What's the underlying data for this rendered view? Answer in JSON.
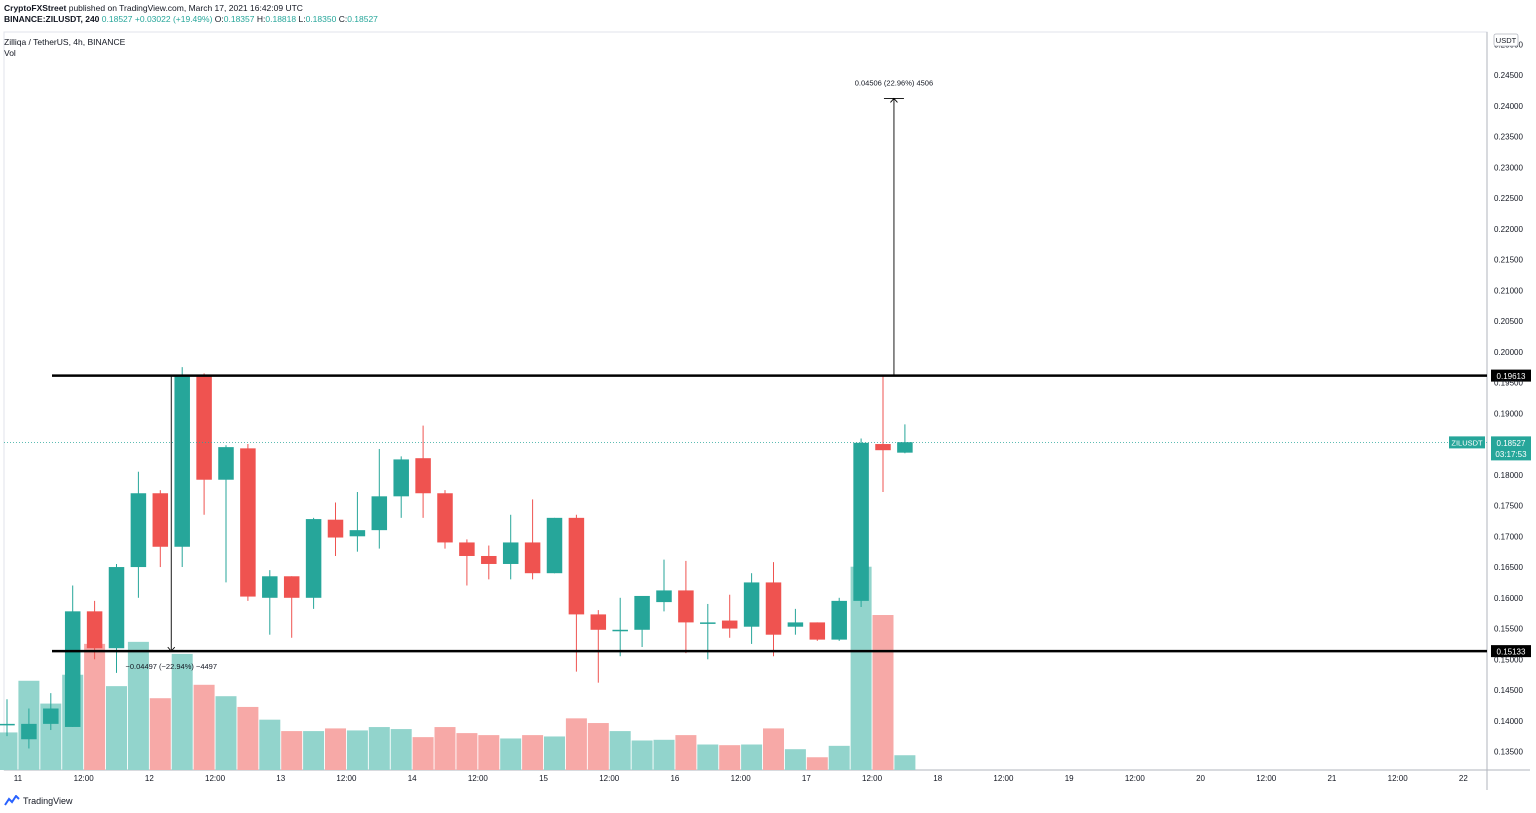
{
  "header": {
    "publisher": "CryptoFXStreet",
    "published_text": "published on TradingView.com, March 17, 2021 16:42:09 UTC",
    "symbol": "BINANCE:ZILUSDT, 240",
    "price": "0.18527",
    "change": "+0.03022 (+19.49%)",
    "o_label": "O:",
    "o_value": "0.18357",
    "h_label": "H:",
    "h_value": "0.18818",
    "l_label": "L:",
    "l_value": "0.18350",
    "c_label": "C:",
    "c_value": "0.18527",
    "pair_title": "Zilliqa / TetherUS, 4h, BINANCE",
    "volume_label": "Vol"
  },
  "footer": {
    "brand": "TradingView"
  },
  "colors": {
    "up": "#26a69a",
    "down": "#ef5350",
    "vol_up": "#92d4cc",
    "vol_down": "#f7a9a7",
    "grid_text": "#131722",
    "level_line": "#000000"
  },
  "chart_data": {
    "type": "candlestick",
    "title": "Zilliqa / TetherUS, 4h, BINANCE",
    "currency": "USDT",
    "ylim": [
      0.132,
      0.252
    ],
    "y_ticks": [
      "0.25000",
      "0.24500",
      "0.24000",
      "0.23500",
      "0.23000",
      "0.22500",
      "0.22000",
      "0.21500",
      "0.21000",
      "0.20500",
      "0.20000",
      "0.19500",
      "0.19000",
      "0.18500",
      "0.18000",
      "0.17500",
      "0.17000",
      "0.16500",
      "0.16000",
      "0.15500",
      "0.15000",
      "0.14500",
      "0.14000",
      "0.13500"
    ],
    "x_ticks": [
      {
        "label": "11",
        "bar": 0.5
      },
      {
        "label": "12:00",
        "bar": 3.5
      },
      {
        "label": "12",
        "bar": 6.5
      },
      {
        "label": "12:00",
        "bar": 9.5
      },
      {
        "label": "13",
        "bar": 12.5
      },
      {
        "label": "12:00",
        "bar": 15.5
      },
      {
        "label": "14",
        "bar": 18.5
      },
      {
        "label": "12:00",
        "bar": 21.5
      },
      {
        "label": "15",
        "bar": 24.5
      },
      {
        "label": "12:00",
        "bar": 27.5
      },
      {
        "label": "16",
        "bar": 30.5
      },
      {
        "label": "12:00",
        "bar": 33.5
      },
      {
        "label": "17",
        "bar": 36.5
      },
      {
        "label": "12:00",
        "bar": 39.5
      },
      {
        "label": "18",
        "bar": 42.5
      },
      {
        "label": "12:00",
        "bar": 45.5
      },
      {
        "label": "19",
        "bar": 48.5
      },
      {
        "label": "12:00",
        "bar": 51.5
      },
      {
        "label": "20",
        "bar": 54.5
      },
      {
        "label": "12:00",
        "bar": 57.5
      },
      {
        "label": "21",
        "bar": 60.5
      },
      {
        "label": "12:00",
        "bar": 63.5
      },
      {
        "label": "22",
        "bar": 66.5
      }
    ],
    "candles": [
      {
        "o": 0.1395,
        "h": 0.1435,
        "l": 0.1375,
        "c": 0.1395
      },
      {
        "o": 0.137,
        "h": 0.142,
        "l": 0.1355,
        "c": 0.1395
      },
      {
        "o": 0.1395,
        "h": 0.1445,
        "l": 0.1385,
        "c": 0.142
      },
      {
        "o": 0.139,
        "h": 0.162,
        "l": 0.139,
        "c": 0.1578
      },
      {
        "o": 0.1578,
        "h": 0.1595,
        "l": 0.15,
        "c": 0.1518
      },
      {
        "o": 0.1518,
        "h": 0.1655,
        "l": 0.1478,
        "c": 0.165
      },
      {
        "o": 0.165,
        "h": 0.1805,
        "l": 0.16,
        "c": 0.177
      },
      {
        "o": 0.177,
        "h": 0.1775,
        "l": 0.165,
        "c": 0.1683
      },
      {
        "o": 0.1683,
        "h": 0.1975,
        "l": 0.165,
        "c": 0.1962
      },
      {
        "o": 0.1962,
        "h": 0.1965,
        "l": 0.1735,
        "c": 0.1792
      },
      {
        "o": 0.1792,
        "h": 0.1848,
        "l": 0.1625,
        "c": 0.1845
      },
      {
        "o": 0.1843,
        "h": 0.185,
        "l": 0.1595,
        "c": 0.1602
      },
      {
        "o": 0.16,
        "h": 0.1645,
        "l": 0.154,
        "c": 0.1635
      },
      {
        "o": 0.1635,
        "h": 0.1635,
        "l": 0.1535,
        "c": 0.16
      },
      {
        "o": 0.16,
        "h": 0.173,
        "l": 0.1582,
        "c": 0.1728
      },
      {
        "o": 0.1727,
        "h": 0.1755,
        "l": 0.1668,
        "c": 0.1698
      },
      {
        "o": 0.17,
        "h": 0.1772,
        "l": 0.1675,
        "c": 0.171
      },
      {
        "o": 0.171,
        "h": 0.1842,
        "l": 0.168,
        "c": 0.1765
      },
      {
        "o": 0.1765,
        "h": 0.183,
        "l": 0.173,
        "c": 0.1825
      },
      {
        "o": 0.1827,
        "h": 0.188,
        "l": 0.173,
        "c": 0.177
      },
      {
        "o": 0.177,
        "h": 0.1775,
        "l": 0.168,
        "c": 0.169
      },
      {
        "o": 0.169,
        "h": 0.1695,
        "l": 0.162,
        "c": 0.1668
      },
      {
        "o": 0.1668,
        "h": 0.1685,
        "l": 0.163,
        "c": 0.1655
      },
      {
        "o": 0.1655,
        "h": 0.1735,
        "l": 0.163,
        "c": 0.169
      },
      {
        "o": 0.169,
        "h": 0.176,
        "l": 0.163,
        "c": 0.164
      },
      {
        "o": 0.164,
        "h": 0.173,
        "l": 0.164,
        "c": 0.173
      },
      {
        "o": 0.173,
        "h": 0.1735,
        "l": 0.148,
        "c": 0.1573
      },
      {
        "o": 0.1573,
        "h": 0.158,
        "l": 0.1462,
        "c": 0.1548
      },
      {
        "o": 0.1548,
        "h": 0.16,
        "l": 0.1505,
        "c": 0.1548
      },
      {
        "o": 0.1548,
        "h": 0.16,
        "l": 0.152,
        "c": 0.1603
      },
      {
        "o": 0.1593,
        "h": 0.1662,
        "l": 0.1578,
        "c": 0.1612
      },
      {
        "o": 0.1612,
        "h": 0.166,
        "l": 0.151,
        "c": 0.156
      },
      {
        "o": 0.1558,
        "h": 0.159,
        "l": 0.15,
        "c": 0.156
      },
      {
        "o": 0.1563,
        "h": 0.1605,
        "l": 0.1535,
        "c": 0.155
      },
      {
        "o": 0.1553,
        "h": 0.164,
        "l": 0.1525,
        "c": 0.1625
      },
      {
        "o": 0.1625,
        "h": 0.1658,
        "l": 0.1505,
        "c": 0.154
      },
      {
        "o": 0.1553,
        "h": 0.1582,
        "l": 0.154,
        "c": 0.156
      },
      {
        "o": 0.156,
        "h": 0.156,
        "l": 0.153,
        "c": 0.1532
      },
      {
        "o": 0.1532,
        "h": 0.16,
        "l": 0.153,
        "c": 0.1595
      },
      {
        "o": 0.1595,
        "h": 0.1859,
        "l": 0.1585,
        "c": 0.1852
      },
      {
        "o": 0.185,
        "h": 0.196,
        "l": 0.1772,
        "c": 0.184
      },
      {
        "o": 0.1836,
        "h": 0.1882,
        "l": 0.1835,
        "c": 0.1853
      }
    ],
    "volume": [
      5.6,
      13.3,
      9.9,
      14.2,
      18.8,
      12.5,
      19.1,
      10.7,
      17.3,
      12.7,
      11.0,
      9.4,
      7.5,
      5.8,
      5.8,
      6.2,
      5.9,
      6.4,
      6.1,
      4.9,
      6.4,
      5.5,
      5.2,
      4.7,
      5.2,
      5.0,
      7.7,
      7.0,
      5.8,
      4.4,
      4.5,
      5.2,
      3.8,
      3.7,
      3.8,
      6.2,
      3.1,
      1.9,
      3.6,
      30.3,
      23.1,
      2.2
    ],
    "horizontal_levels": [
      {
        "value": 0.19613,
        "label": "0.19613"
      },
      {
        "value": 0.15133,
        "label": "0.15133"
      }
    ],
    "measure_annotations": [
      {
        "text": "0.04506 (22.96%) 4506",
        "direction": "up",
        "bar": 40.5,
        "from": 0.19613,
        "to": 0.24119
      },
      {
        "text": "−0.04497 (−22.94%) −4497",
        "direction": "down",
        "bar": 7.5,
        "from": 0.1963,
        "to": 0.15133
      }
    ],
    "last_price": {
      "symbol": "ZILUSDT",
      "value": "0.18527",
      "countdown": "03:17:53",
      "y": 0.18527
    }
  }
}
